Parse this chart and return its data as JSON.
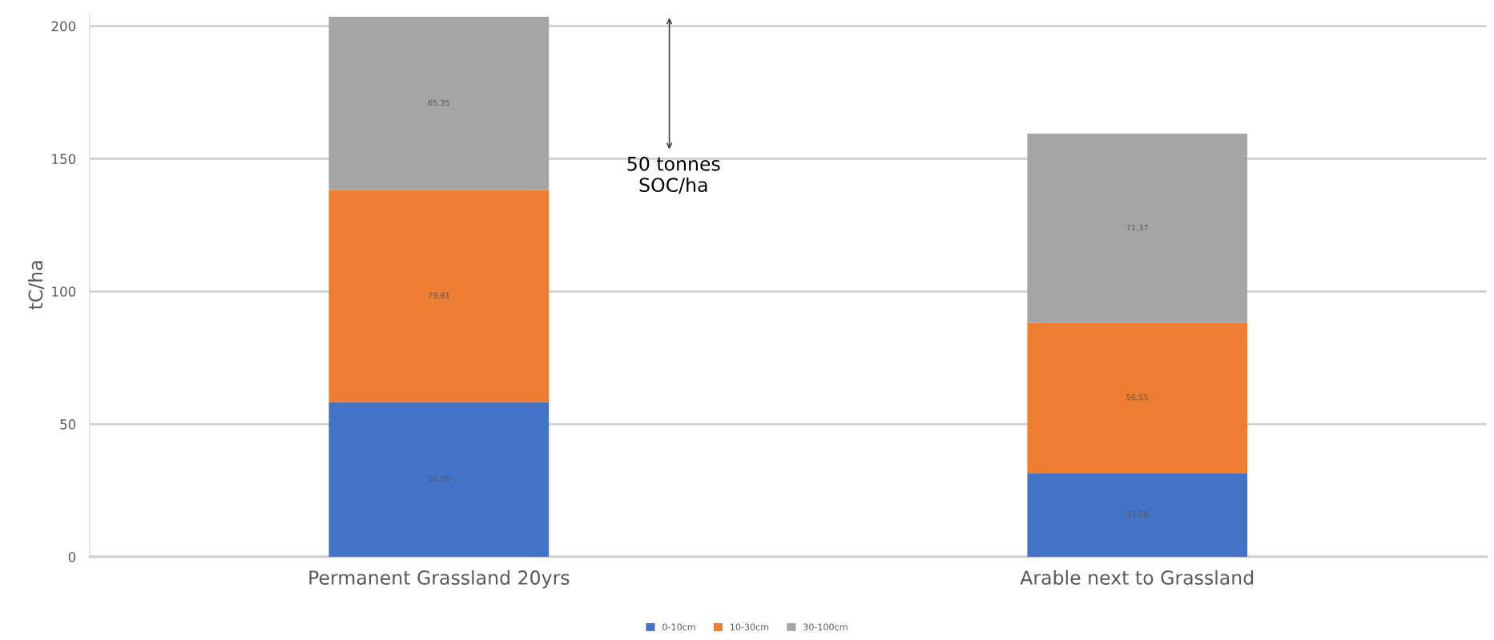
{
  "chart_data": {
    "type": "bar",
    "stacked": true,
    "ylabel": "tC/ha",
    "categories": [
      "Permanent Grassland 20yrs",
      "Arable next to Grassland"
    ],
    "series": [
      {
        "name": "0-10cm",
        "color": "#4472c4",
        "values": [
          58.35,
          31.56
        ]
      },
      {
        "name": "10-30cm",
        "color": "#ed7d31",
        "values": [
          79.81,
          56.55
        ]
      },
      {
        "name": "30-100cm",
        "color": "#a5a5a5",
        "values": [
          65.35,
          71.37
        ]
      }
    ],
    "ylim": [
      0,
      205
    ],
    "yticks": [
      0,
      50,
      100,
      150,
      200
    ],
    "grid": "y",
    "legend": "bottom",
    "data_labels": true,
    "annotations": [
      "50 tonnes\nSOC/ha"
    ]
  }
}
